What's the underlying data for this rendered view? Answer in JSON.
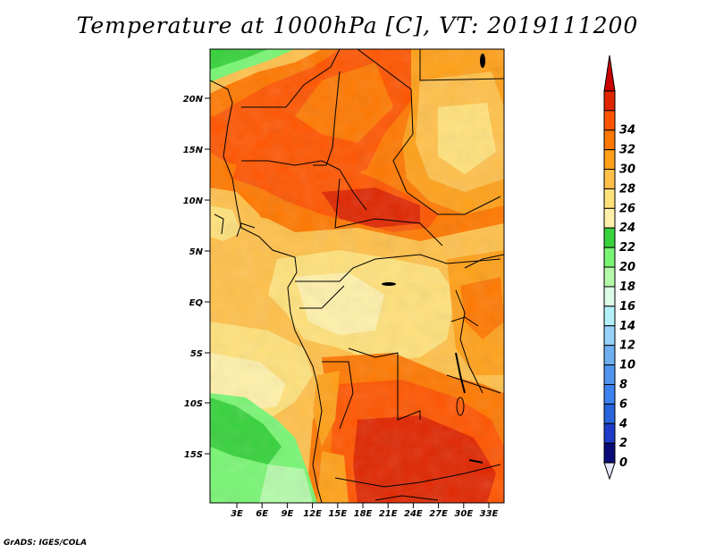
{
  "title": "Temperature at 1000hPa [C], VT: 2019111200",
  "credit": "GrADS: IGES/COLA",
  "map": {
    "lat_labels": [
      "20N",
      "15N",
      "10N",
      "5N",
      "EQ",
      "5S",
      "10S",
      "15S"
    ],
    "lon_labels": [
      "3E",
      "6E",
      "9E",
      "12E",
      "15E",
      "18E",
      "21E",
      "24E",
      "27E",
      "30E",
      "33E"
    ]
  },
  "colorbar": {
    "labels": [
      "0",
      "2",
      "4",
      "6",
      "8",
      "10",
      "12",
      "14",
      "16",
      "18",
      "20",
      "22",
      "24",
      "26",
      "28",
      "30",
      "32",
      "34"
    ],
    "colors": [
      "#e6e6ff",
      "#0c0c78",
      "#1e3cc8",
      "#2864dc",
      "#3c82f0",
      "#5096f0",
      "#6eaff0",
      "#96d2fa",
      "#b4f0fa",
      "#dcfae6",
      "#b4faaa",
      "#78f573",
      "#37d23c",
      "#fff0aa",
      "#ffe17a",
      "#ffc04a",
      "#ffa018",
      "#ff7800",
      "#ff5500",
      "#e02600",
      "#c80000"
    ]
  }
}
